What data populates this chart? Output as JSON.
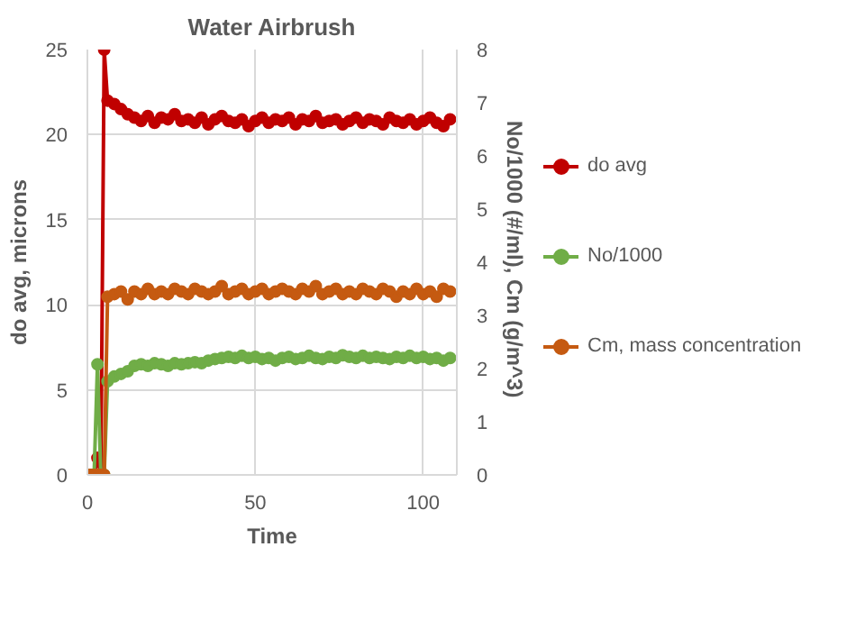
{
  "chart_data": {
    "type": "line",
    "title": "Water Airbrush",
    "xlabel": "Time",
    "ylabel": "do avg, microns",
    "y2label": "No/1000 (#/ml),  Cm (g/m^3)",
    "x": [
      0,
      1,
      2,
      3,
      4,
      5,
      6,
      8,
      10,
      12,
      14,
      16,
      18,
      20,
      22,
      24,
      26,
      28,
      30,
      32,
      34,
      36,
      38,
      40,
      42,
      44,
      46,
      48,
      50,
      52,
      54,
      56,
      58,
      60,
      62,
      64,
      66,
      68,
      70,
      72,
      74,
      76,
      78,
      80,
      82,
      84,
      86,
      88,
      90,
      92,
      94,
      96,
      98,
      100,
      102,
      104,
      106,
      108
    ],
    "xlim": [
      0,
      110
    ],
    "xticks": [
      0,
      50,
      100
    ],
    "ylim": [
      0,
      25
    ],
    "yticks": [
      0,
      5,
      10,
      15,
      20,
      25
    ],
    "y2lim": [
      0,
      8
    ],
    "y2ticks": [
      0,
      1,
      2,
      3,
      4,
      5,
      6,
      7,
      8
    ],
    "grid": true,
    "legend": "right",
    "marker": "circle",
    "line_style": "solid",
    "series": [
      {
        "name": "do avg",
        "color": "#c00000",
        "values": [
          0,
          0,
          0,
          1,
          0,
          25,
          22,
          21.8,
          21.5,
          21.2,
          21.0,
          20.8,
          21.1,
          20.7,
          21.0,
          20.9,
          21.2,
          20.8,
          20.9,
          20.7,
          21.0,
          20.6,
          20.9,
          21.1,
          20.8,
          20.7,
          20.9,
          20.5,
          20.8,
          21.0,
          20.7,
          20.9,
          20.8,
          21.0,
          20.6,
          20.9,
          20.8,
          21.1,
          20.7,
          20.8,
          20.9,
          20.6,
          20.8,
          21.0,
          20.7,
          20.9,
          20.8,
          20.6,
          21.0,
          20.8,
          20.7,
          20.9,
          20.6,
          20.8,
          21.0,
          20.7,
          20.5,
          20.9
        ]
      },
      {
        "name": "No/1000",
        "color": "#70ad47",
        "axis": "y2",
        "values": [
          0,
          0,
          0,
          2.08,
          0,
          0,
          1.76,
          1.85,
          1.9,
          1.95,
          2.05,
          2.08,
          2.05,
          2.1,
          2.08,
          2.05,
          2.1,
          2.08,
          2.1,
          2.12,
          2.1,
          2.15,
          2.18,
          2.2,
          2.22,
          2.2,
          2.24,
          2.2,
          2.22,
          2.18,
          2.2,
          2.15,
          2.2,
          2.22,
          2.18,
          2.2,
          2.24,
          2.2,
          2.18,
          2.22,
          2.2,
          2.25,
          2.22,
          2.2,
          2.24,
          2.2,
          2.22,
          2.2,
          2.18,
          2.22,
          2.2,
          2.24,
          2.2,
          2.22,
          2.18,
          2.2,
          2.15,
          2.2
        ]
      },
      {
        "name": "Cm, mass concentration",
        "color": "#c55a11",
        "axis": "y2",
        "values": [
          0,
          0,
          0,
          0,
          0,
          0,
          3.35,
          3.4,
          3.45,
          3.3,
          3.45,
          3.4,
          3.5,
          3.4,
          3.45,
          3.4,
          3.5,
          3.45,
          3.4,
          3.5,
          3.45,
          3.4,
          3.45,
          3.55,
          3.4,
          3.45,
          3.5,
          3.4,
          3.45,
          3.5,
          3.4,
          3.45,
          3.5,
          3.45,
          3.4,
          3.5,
          3.45,
          3.55,
          3.4,
          3.45,
          3.5,
          3.4,
          3.45,
          3.4,
          3.5,
          3.45,
          3.4,
          3.5,
          3.45,
          3.35,
          3.45,
          3.4,
          3.5,
          3.4,
          3.45,
          3.35,
          3.5,
          3.45
        ]
      }
    ]
  }
}
